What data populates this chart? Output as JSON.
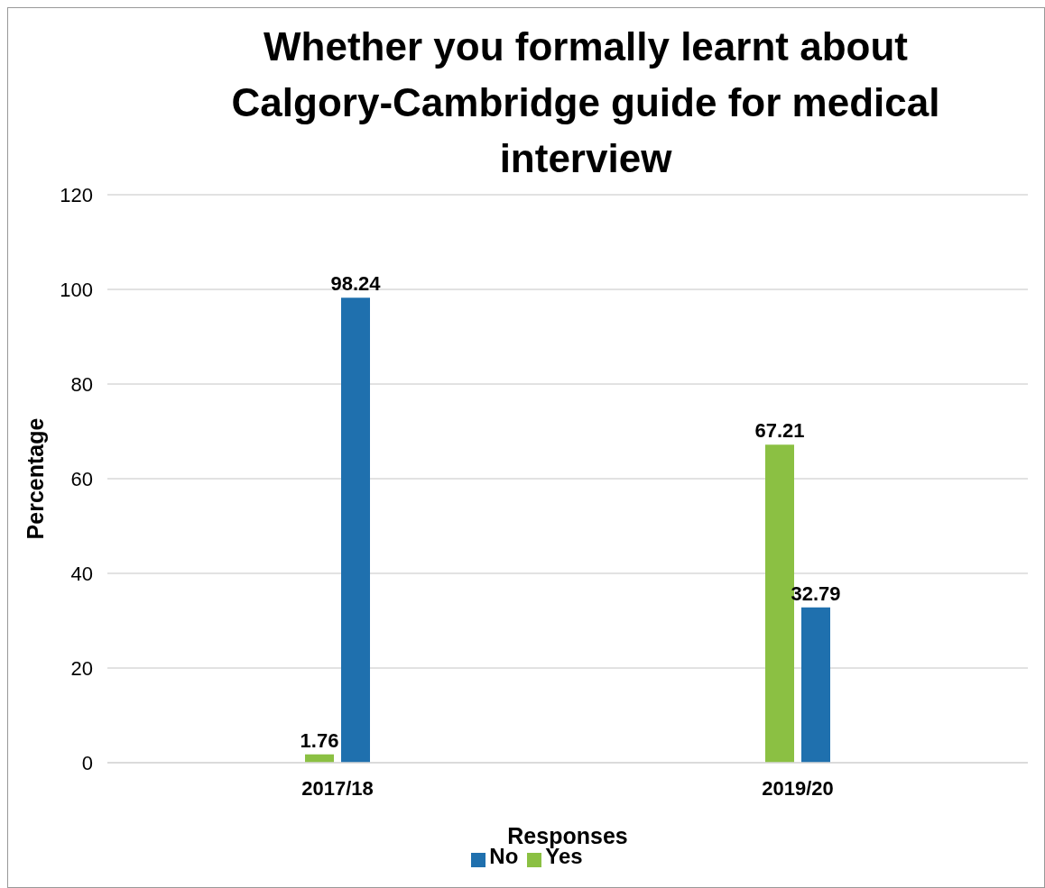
{
  "chart_data": {
    "type": "bar",
    "title": "Whether you formally learnt about Calgory-Cambridge guide for medical interview",
    "xlabel": "Responses",
    "ylabel": "Percentage",
    "categories": [
      "2017/18",
      "2019/20"
    ],
    "series": [
      {
        "name": "Yes",
        "color": "#8bc043",
        "values": [
          1.76,
          67.21
        ]
      },
      {
        "name": "No",
        "color": "#1f70ae",
        "values": [
          98.24,
          32.79
        ]
      }
    ],
    "ylim": [
      0,
      120
    ],
    "yticks": [
      0,
      20,
      40,
      60,
      80,
      100,
      120
    ],
    "grid": "y",
    "legend": "bottom",
    "data_labels": true
  }
}
